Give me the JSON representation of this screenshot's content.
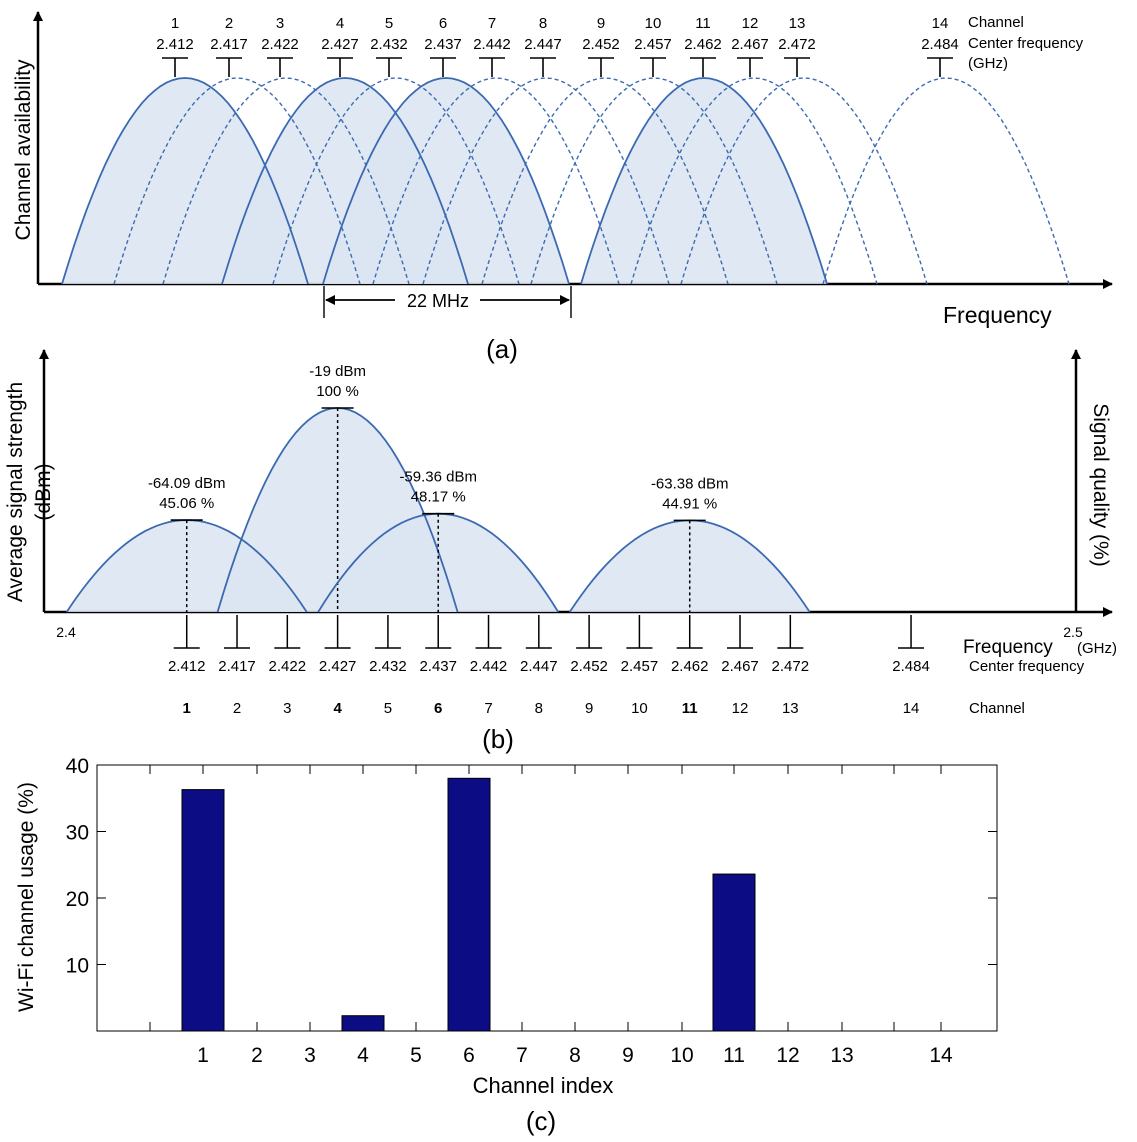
{
  "colors": {
    "curve": "#3c6ab2",
    "fill": "#dbe5f1",
    "overlap": "#c6d6ea",
    "bar": "#0c0c84",
    "axis": "#000000"
  },
  "chart_data": [
    {
      "panel": "(a)",
      "type": "area",
      "ylabel": "Channel availability",
      "xlabel": "Frequency",
      "header": {
        "channel": "Channel",
        "center_frequency": "Center frequency",
        "unit": "(GHz)"
      },
      "channels": [
        "1",
        "2",
        "3",
        "4",
        "5",
        "6",
        "7",
        "8",
        "9",
        "10",
        "11",
        "12",
        "13",
        "14"
      ],
      "center_frequencies": [
        "2.412",
        "2.417",
        "2.422",
        "2.427",
        "2.432",
        "2.437",
        "2.442",
        "2.447",
        "2.452",
        "2.457",
        "2.462",
        "2.467",
        "2.472",
        "2.484"
      ],
      "highlighted_channels": [
        "1",
        "4",
        "6",
        "11"
      ],
      "bandwidth_label": "22 MHz"
    },
    {
      "panel": "(b)",
      "type": "area",
      "ylabel_line1": "Average signal strength",
      "ylabel_line2": "(dBm)",
      "y2label": "Signal quality (%)",
      "xlabel": "Frequency",
      "xunit": "(GHz)",
      "xtick_start": "2.4",
      "xtick_end": "2.5",
      "center_frequency_label": "Center frequency",
      "channel_label": "Channel",
      "series": [
        {
          "channel": "1",
          "frequency": 2.412,
          "dbm": "-64.09 dBm",
          "quality": "45.06 %",
          "quality_value": 45.06
        },
        {
          "channel": "4",
          "frequency": 2.427,
          "dbm": "-19 dBm",
          "quality": "100 %",
          "quality_value": 100
        },
        {
          "channel": "6",
          "frequency": 2.437,
          "dbm": "-59.36 dBm",
          "quality": "48.17 %",
          "quality_value": 48.17
        },
        {
          "channel": "11",
          "frequency": 2.462,
          "dbm": "-63.38 dBm",
          "quality": "44.91 %",
          "quality_value": 44.91
        }
      ]
    },
    {
      "panel": "(c)",
      "type": "bar",
      "xlabel": "Channel index",
      "ylabel": "Wi-Fi channel usage (%)",
      "ylim": [
        0,
        40
      ],
      "yticks": [
        "10",
        "20",
        "30",
        "40"
      ],
      "categories": [
        "1",
        "2",
        "3",
        "4",
        "5",
        "6",
        "7",
        "8",
        "9",
        "10",
        "11",
        "12",
        "13",
        "14"
      ],
      "values": [
        36.3,
        0,
        0,
        2.3,
        0,
        38.0,
        0,
        0,
        0,
        0,
        23.6,
        0,
        0,
        0
      ]
    }
  ]
}
